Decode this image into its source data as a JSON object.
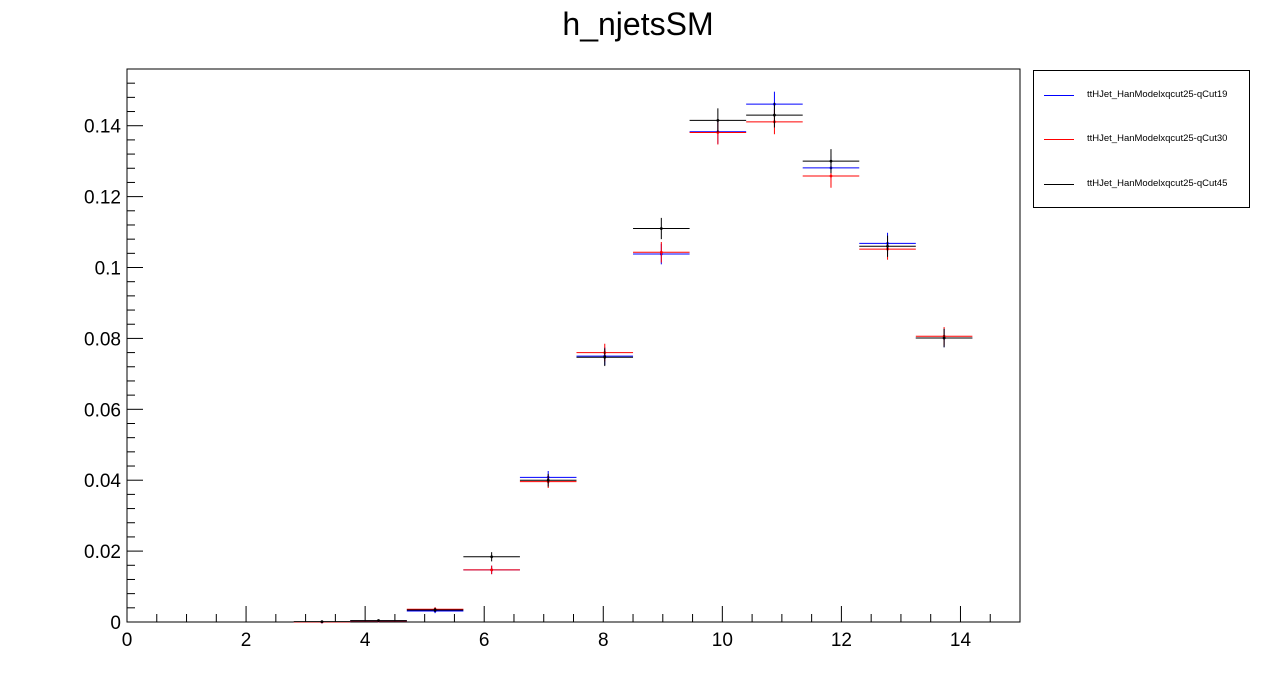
{
  "title": "h_njetsSM",
  "legend": [
    {
      "label": "ttHJet_HanModelxqcut25-qCut19",
      "color": "#0000ff"
    },
    {
      "label": "ttHJet_HanModelxqcut25-qCut30",
      "color": "#ff0000"
    },
    {
      "label": "ttHJet_HanModelxqcut25-qCut45",
      "color": "#000000"
    }
  ],
  "chart_data": {
    "type": "scatter",
    "title": "h_njetsSM",
    "xlim": [
      0,
      15
    ],
    "ylim": [
      0,
      0.156
    ],
    "x_ticks": [
      "0",
      "2",
      "4",
      "6",
      "8",
      "10",
      "12",
      "14"
    ],
    "y_ticks": [
      "0",
      "0.02",
      "0.04",
      "0.06",
      "0.08",
      "0.1",
      "0.12",
      "0.14"
    ],
    "bin_edges": [
      2.8,
      3.75,
      4.7,
      5.65,
      6.6,
      7.55,
      8.5,
      9.45,
      10.4,
      11.35,
      12.3,
      13.25,
      14.2
    ],
    "series": [
      {
        "name": "ttHJet_HanModelxqcut25-qCut19",
        "color": "#0000ff",
        "values": [
          0.0,
          0.0003,
          0.0031,
          0.0147,
          0.0408,
          0.075,
          0.1038,
          0.1383,
          0.1461,
          0.1281,
          0.1068,
          0.0801
        ],
        "errors": [
          0.0001,
          0.0002,
          0.0006,
          0.0012,
          0.0018,
          0.0025,
          0.0029,
          0.0034,
          0.0035,
          0.0033,
          0.003,
          0.0026
        ]
      },
      {
        "name": "ttHJet_HanModelxqcut25-qCut30",
        "color": "#ff0000",
        "values": [
          0.0,
          0.0003,
          0.0036,
          0.0147,
          0.0396,
          0.076,
          0.1043,
          0.1381,
          0.1411,
          0.1258,
          0.1052,
          0.0806
        ],
        "errors": [
          0.0001,
          0.0002,
          0.0006,
          0.0012,
          0.0018,
          0.0025,
          0.0029,
          0.0034,
          0.0035,
          0.0033,
          0.003,
          0.0026
        ]
      },
      {
        "name": "ttHJet_HanModelxqcut25-qCut45",
        "color": "#000000",
        "values": [
          0.0001,
          0.0004,
          0.0034,
          0.0184,
          0.04,
          0.0747,
          0.111,
          0.1415,
          0.143,
          0.13,
          0.106,
          0.0801
        ],
        "errors": [
          0.0001,
          0.0002,
          0.0006,
          0.0013,
          0.0018,
          0.0025,
          0.003,
          0.0034,
          0.0035,
          0.0034,
          0.003,
          0.0026
        ]
      }
    ]
  }
}
